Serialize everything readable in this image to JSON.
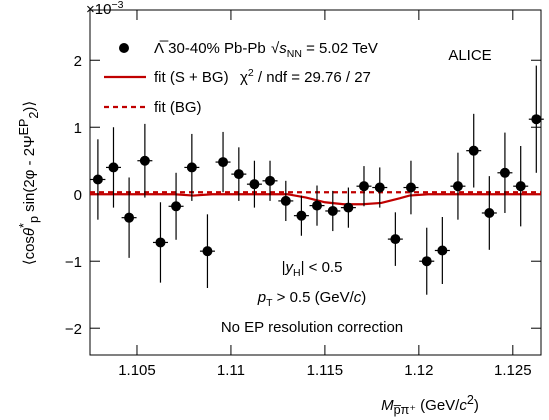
{
  "chart_data": {
    "type": "errorbar",
    "exponent_label": [
      {
        "t": "×10"
      },
      {
        "t": "−3",
        "s": "sup"
      }
    ],
    "x_label": [
      {
        "t": "M",
        "s": "it"
      },
      {
        "t": "p̅π⁺",
        "s": "sub"
      },
      {
        "t": " (GeV/"
      },
      {
        "t": "c",
        "s": "it"
      },
      {
        "t": "2",
        "s": "sup"
      },
      {
        "t": ")"
      }
    ],
    "y_label": [
      {
        "t": "⟨cos"
      },
      {
        "t": "θ",
        "s": "it"
      },
      {
        "t": "*",
        "s": "sup"
      },
      {
        "t": "p",
        "s": "sub"
      },
      {
        "t": " sin(2φ - 2Ψ"
      },
      {
        "t": "EP",
        "s": "sup"
      },
      {
        "t": "2",
        "s": "sub"
      },
      {
        "t": ")⟩"
      }
    ],
    "xlim": [
      1.1025,
      1.1265
    ],
    "ylim": [
      -2.4,
      2.75
    ],
    "xticks": [
      1.105,
      1.11,
      1.115,
      1.12,
      1.125
    ],
    "yticks": [
      {
        "value": -2,
        "label": "−2"
      },
      {
        "value": -1,
        "label": "−1"
      },
      0,
      1,
      2
    ],
    "series": [
      {
        "name": "Λ̅  30-40% Pb-Pb",
        "color": "#000000",
        "x": [
          1.10292,
          1.10375,
          1.10458,
          1.10542,
          1.10625,
          1.10708,
          1.10792,
          1.10875,
          1.10958,
          1.11042,
          1.11125,
          1.11208,
          1.11292,
          1.11375,
          1.11458,
          1.11542,
          1.11625,
          1.11708,
          1.11792,
          1.11875,
          1.11958,
          1.12042,
          1.12125,
          1.12208,
          1.12292,
          1.12375,
          1.12458,
          1.12542,
          1.12625
        ],
        "values": [
          0.22,
          0.4,
          -0.35,
          0.5,
          -0.72,
          -0.18,
          0.4,
          -0.85,
          0.48,
          0.3,
          0.15,
          0.2,
          -0.1,
          -0.32,
          -0.17,
          -0.25,
          -0.2,
          0.12,
          0.1,
          -0.67,
          0.1,
          -1.0,
          -0.84,
          0.12,
          0.65,
          -0.28,
          0.32,
          0.12,
          1.12
        ],
        "errors": [
          0.6,
          0.6,
          0.6,
          0.55,
          0.6,
          0.5,
          0.5,
          0.55,
          0.45,
          0.4,
          0.35,
          0.3,
          0.3,
          0.3,
          0.3,
          0.3,
          0.3,
          0.3,
          0.3,
          0.4,
          0.4,
          0.5,
          0.5,
          0.5,
          0.55,
          0.55,
          0.6,
          0.6,
          0.8
        ]
      },
      {
        "name": "fit (S + BG)",
        "color": "#c00000",
        "style": "solid",
        "x": [
          1.1025,
          1.107,
          1.108,
          1.109,
          1.113,
          1.114,
          1.115,
          1.116,
          1.117,
          1.118,
          1.119,
          1.1195,
          1.1205,
          1.1265
        ],
        "values": [
          0,
          0,
          -0.02,
          0,
          0,
          -0.05,
          -0.12,
          -0.15,
          -0.15,
          -0.13,
          -0.06,
          -0.02,
          0,
          0
        ]
      },
      {
        "name": "fit (BG)",
        "color": "#c00000",
        "style": "dashed",
        "x": [
          1.1025,
          1.1265
        ],
        "values": [
          0.03,
          0.03
        ]
      }
    ],
    "energy_label": [
      {
        "t": "√"
      },
      {
        "t": "s",
        "s": "it"
      },
      {
        "t": "NN",
        "s": "sub"
      },
      {
        "t": " = 5.02 TeV"
      }
    ],
    "chi2_label": [
      {
        "t": "χ"
      },
      {
        "t": "2",
        "s": "sup"
      },
      {
        "t": " / ndf = 29.76 / 27"
      }
    ],
    "experiment": "ALICE",
    "annotations": [
      [
        {
          "t": "|"
        },
        {
          "t": "y",
          "s": "it"
        },
        {
          "t": "H",
          "s": "sub"
        },
        {
          "t": "| < 0.5"
        }
      ],
      [
        {
          "t": "p",
          "s": "it"
        },
        {
          "t": "T",
          "s": "sub"
        },
        {
          "t": " > 0.5 (GeV/"
        },
        {
          "t": "c",
          "s": "it"
        },
        {
          "t": ")"
        }
      ],
      [
        {
          "t": "No EP resolution correction"
        }
      ]
    ]
  }
}
